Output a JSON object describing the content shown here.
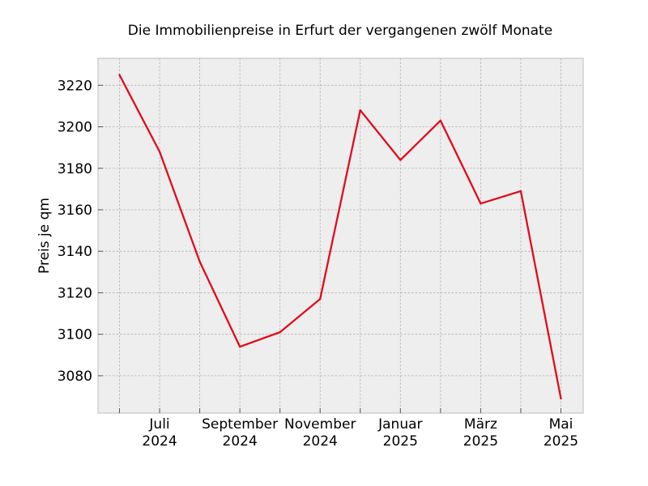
{
  "chart_data": {
    "type": "line",
    "title": "Die Immobilienpreise in Erfurt der vergangenen zwölf Monate",
    "xlabel": "",
    "ylabel": "Preis je qm",
    "x": [
      "2024-06",
      "2024-07",
      "2024-08",
      "2024-09",
      "2024-10",
      "2024-11",
      "2024-12",
      "2025-01",
      "2025-02",
      "2025-03",
      "2025-04",
      "2025-05"
    ],
    "x_tick_labels": [
      {
        "at": "2024-07",
        "line1": "Juli",
        "line2": "2024"
      },
      {
        "at": "2024-09",
        "line1": "September",
        "line2": "2024"
      },
      {
        "at": "2024-11",
        "line1": "November",
        "line2": "2024"
      },
      {
        "at": "2025-01",
        "line1": "Januar",
        "line2": "2025"
      },
      {
        "at": "2025-03",
        "line1": "März",
        "line2": "2025"
      },
      {
        "at": "2025-05",
        "line1": "Mai",
        "line2": "2025"
      }
    ],
    "series": [
      {
        "values": [
          3225,
          3188,
          3135,
          3094,
          3101,
          3117,
          3208,
          3184,
          3203,
          3163,
          3169,
          3069
        ],
        "color": "#e00b1c"
      }
    ],
    "ylim": [
      3062,
      3233
    ],
    "yticks": [
      3080,
      3100,
      3120,
      3140,
      3160,
      3180,
      3200,
      3220
    ],
    "grid": true,
    "legend": "none"
  }
}
